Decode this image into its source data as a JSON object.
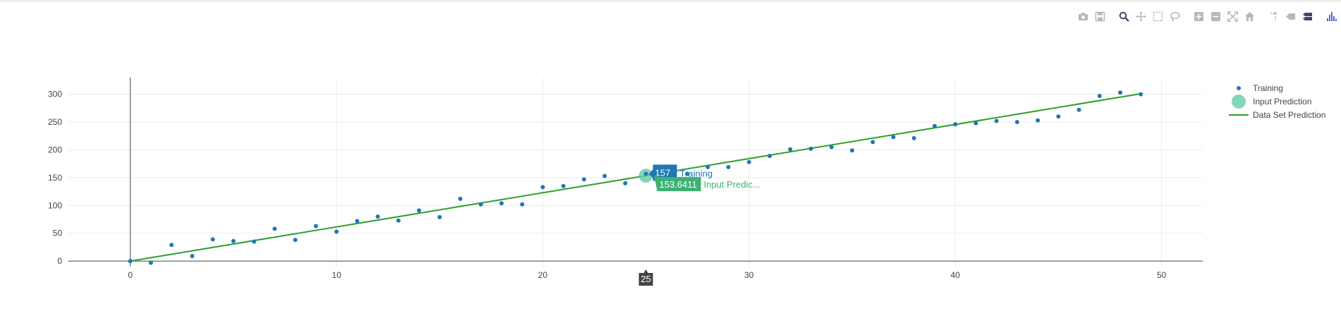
{
  "modebar": {
    "buttons": [
      {
        "name": "camera-icon",
        "group": 0
      },
      {
        "name": "save-icon",
        "group": 0
      },
      {
        "name": "zoom-icon",
        "group": 1
      },
      {
        "name": "pan-icon",
        "group": 1
      },
      {
        "name": "box-select-icon",
        "group": 1
      },
      {
        "name": "lasso-icon",
        "group": 1
      },
      {
        "name": "zoom-in-icon",
        "group": 2
      },
      {
        "name": "zoom-out-icon",
        "group": 2
      },
      {
        "name": "autoscale-icon",
        "group": 2
      },
      {
        "name": "home-icon",
        "group": 2
      },
      {
        "name": "spike-lines-icon",
        "group": 3
      },
      {
        "name": "hover-closest-icon",
        "group": 3
      },
      {
        "name": "hover-compare-icon",
        "group": 3
      },
      {
        "name": "plotly-logo-icon",
        "group": 4
      }
    ],
    "icon_color": "#b3b8c2",
    "active_color": "#3d4b66",
    "logo_color": "#3f4fe0"
  },
  "chart_data": {
    "type": "scatter",
    "title": "",
    "xlabel": "",
    "ylabel": "",
    "xlim": [
      -3,
      52
    ],
    "ylim": [
      -10,
      330
    ],
    "x_ticks": [
      0,
      10,
      20,
      30,
      40,
      50
    ],
    "y_ticks": [
      0,
      50,
      100,
      150,
      200,
      250,
      300
    ],
    "grid": true,
    "legend_position": "right",
    "series": [
      {
        "name": "Training",
        "mode": "markers",
        "color": "#1f77b4",
        "x": [
          0,
          1,
          2,
          3,
          4,
          5,
          6,
          7,
          8,
          9,
          10,
          11,
          12,
          13,
          14,
          15,
          16,
          17,
          18,
          19,
          20,
          21,
          22,
          23,
          24,
          25,
          26,
          27,
          28,
          29,
          30,
          31,
          32,
          33,
          34,
          35,
          36,
          37,
          38,
          39,
          40,
          41,
          42,
          43,
          44,
          45,
          46,
          47,
          48,
          49
        ],
        "y": [
          0,
          -3,
          29,
          9,
          39,
          36,
          35,
          58,
          38,
          63,
          53,
          72,
          80,
          73,
          91,
          79,
          112,
          102,
          104,
          102,
          133,
          135,
          147,
          153,
          140,
          157,
          170,
          157,
          169,
          169,
          178,
          189,
          201,
          202,
          205,
          199,
          214,
          223,
          221,
          243,
          246,
          248,
          252,
          250,
          253,
          260,
          272,
          297,
          303,
          300
        ]
      },
      {
        "name": "Input Prediction",
        "mode": "markers",
        "color": "#66cdaa",
        "x": [
          25
        ],
        "y": [
          153.6411
        ]
      },
      {
        "name": "Data Set Prediction",
        "mode": "lines",
        "color": "#2ca02c",
        "x": [
          0,
          49
        ],
        "y": [
          0,
          301
        ]
      }
    ],
    "hover": {
      "x_label": "25",
      "training_value": "157",
      "training_name": "Training",
      "prediction_value": "153.6411",
      "prediction_name": "Input Predic..."
    }
  }
}
